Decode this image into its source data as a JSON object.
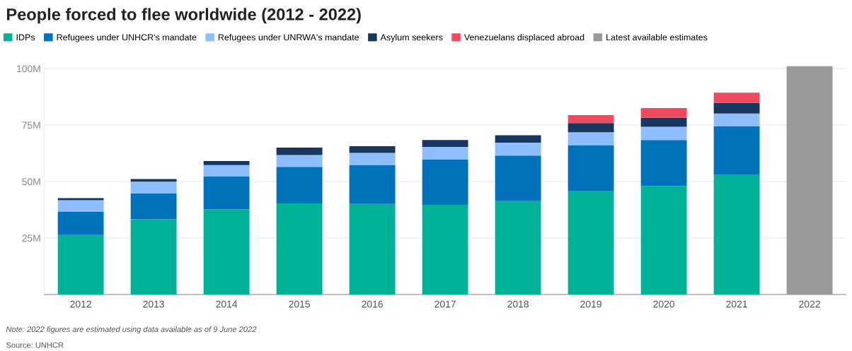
{
  "chart_data": {
    "type": "bar",
    "title": "People forced to flee worldwide (2012 - 2022)",
    "categories": [
      "2012",
      "2013",
      "2014",
      "2015",
      "2016",
      "2017",
      "2018",
      "2019",
      "2020",
      "2021",
      "2022"
    ],
    "stacked": true,
    "series": [
      {
        "name": "IDPs",
        "color": "#00b398",
        "values": [
          26.3,
          33.3,
          37.7,
          40.3,
          40.1,
          39.7,
          41.3,
          45.7,
          48.0,
          53.1,
          null
        ]
      },
      {
        "name": "Refugees under UNHCR's mandate",
        "color": "#0072bc",
        "values": [
          10.4,
          11.5,
          14.5,
          16.2,
          17.1,
          20.1,
          20.2,
          20.4,
          20.4,
          21.3,
          null
        ]
      },
      {
        "name": "Refugees under UNRWA's mandate",
        "color": "#8ebeff",
        "values": [
          5.0,
          5.1,
          5.1,
          5.2,
          5.5,
          5.5,
          5.7,
          5.7,
          5.8,
          5.7,
          null
        ]
      },
      {
        "name": "Asylum seekers",
        "color": "#18375f",
        "values": [
          1.0,
          1.2,
          1.8,
          3.3,
          2.9,
          3.1,
          3.3,
          4.1,
          4.1,
          4.8,
          null
        ]
      },
      {
        "name": "Venezuelans displaced abroad",
        "color": "#ef4a60",
        "values": [
          null,
          null,
          null,
          null,
          null,
          null,
          null,
          3.5,
          4.2,
          4.4,
          null
        ]
      },
      {
        "name": "Latest available estimates",
        "color": "#999999",
        "values": [
          null,
          null,
          null,
          null,
          null,
          null,
          null,
          null,
          null,
          null,
          101.0
        ]
      }
    ],
    "ylim": [
      0,
      103
    ],
    "yticks": [
      {
        "value": 0,
        "label": null
      },
      {
        "value": 25,
        "label": "25M"
      },
      {
        "value": 50,
        "label": "50M"
      },
      {
        "value": 75,
        "label": "75M"
      },
      {
        "value": 100,
        "label": "100M"
      }
    ],
    "grid": "y",
    "legend": "top left",
    "annotations": [
      "Note: 2022 figures are estimated using data available as of 9 June 2022",
      "Source: UNHCR"
    ]
  }
}
